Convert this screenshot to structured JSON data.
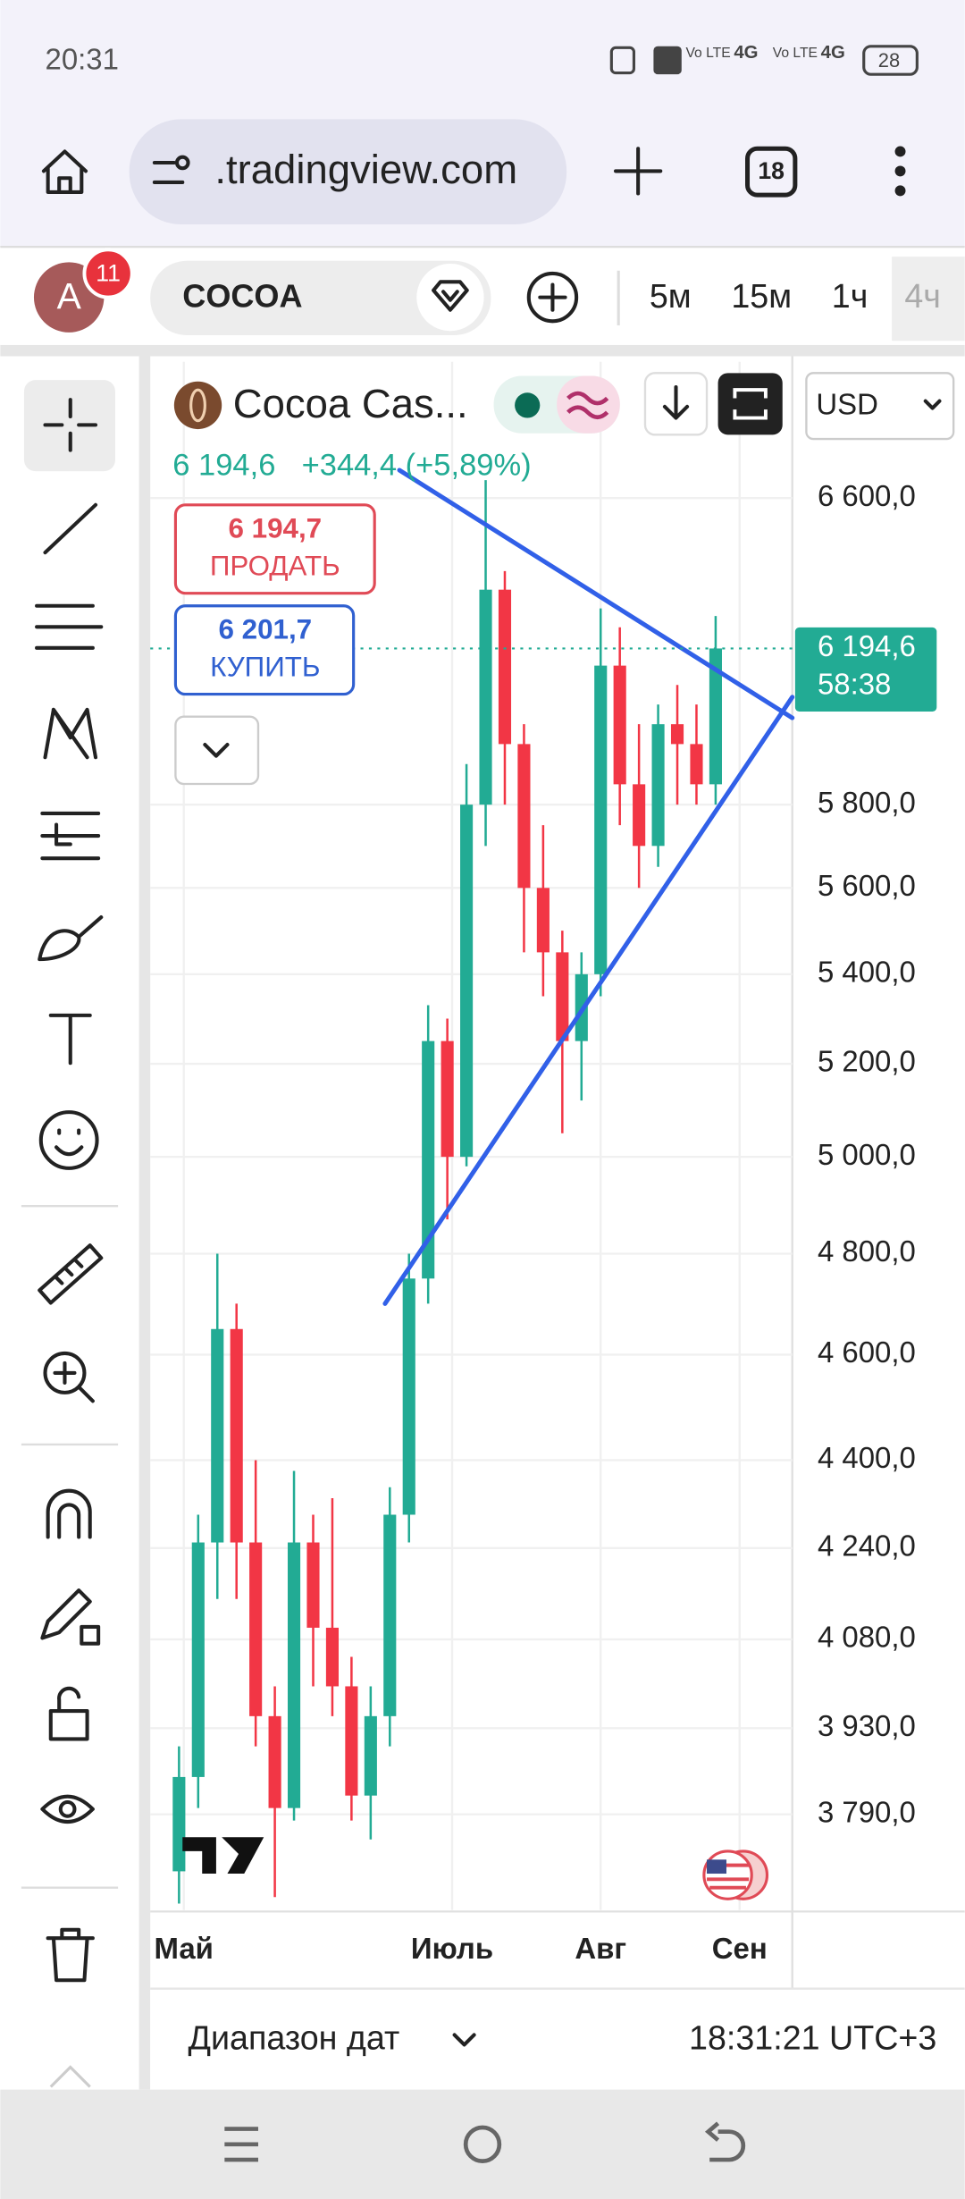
{
  "status_bar": {
    "time": "20:31",
    "network": [
      "Vo LTE",
      "4G",
      "Vo LTE",
      "4G"
    ],
    "battery": "28"
  },
  "browser": {
    "url": ".tradingview.com",
    "tabs": "18"
  },
  "toolbar": {
    "avatar": "A",
    "notifications": "11",
    "symbol": "COCOA",
    "intervals": [
      "5м",
      "15м",
      "1ч",
      "4ч"
    ]
  },
  "chart_data": {
    "type": "candlestick",
    "title": "Cocoa Cas...",
    "quote_price": "6 194,6",
    "quote_change": "+344,4 (+5,89%)",
    "sell": {
      "price": "6 194,7",
      "label": "ПРОДАТЬ"
    },
    "buy": {
      "price": "6 201,7",
      "label": "КУПИТЬ"
    },
    "currency": "USD",
    "last_price": {
      "value": 6194.6,
      "label": "6 194,6"
    },
    "countdown": "58:38",
    "log_scale": true,
    "grid": true,
    "up_color": "#22ab94",
    "down_color": "#f23645",
    "trendline_color": "#3160e8",
    "ylim": [
      3640,
      6990
    ],
    "yticks": [
      {
        "value": 6600,
        "label": "6 600,0"
      },
      {
        "value": 5800,
        "label": "5 800,0"
      },
      {
        "value": 5600,
        "label": "5 600,0"
      },
      {
        "value": 5400,
        "label": "5 400,0"
      },
      {
        "value": 5200,
        "label": "5 200,0"
      },
      {
        "value": 5000,
        "label": "5 000,0"
      },
      {
        "value": 4800,
        "label": "4 800,0"
      },
      {
        "value": 4600,
        "label": "4 600,0"
      },
      {
        "value": 4400,
        "label": "4 400,0"
      },
      {
        "value": 4240,
        "label": "4 240,0"
      },
      {
        "value": 4080,
        "label": "4 080,0"
      },
      {
        "value": 3930,
        "label": "3 930,0"
      },
      {
        "value": 3790,
        "label": "3 790,0"
      }
    ],
    "xlim": [
      0,
      134
    ],
    "xticks": [
      {
        "value": 7,
        "label": "Май"
      },
      {
        "value": 63,
        "label": "Июль"
      },
      {
        "value": 94,
        "label": "Авг"
      },
      {
        "value": 123,
        "label": "Сен"
      }
    ],
    "candles": {
      "x": [
        6,
        10,
        14,
        18,
        22,
        26,
        30,
        34,
        38,
        42,
        46,
        50,
        54,
        58,
        62,
        66,
        70,
        74,
        78,
        82,
        86,
        90,
        94,
        98,
        102,
        106,
        110,
        114,
        118
      ],
      "open": [
        3700,
        3850,
        4250,
        4650,
        4250,
        3950,
        3800,
        4250,
        4100,
        4000,
        3820,
        3950,
        4300,
        4750,
        5250,
        5000,
        5800,
        6350,
        5950,
        5600,
        5450,
        5250,
        5400,
        6150,
        5850,
        5700,
        6000,
        5950,
        5850
      ],
      "high": [
        3900,
        4300,
        4800,
        4700,
        4400,
        4000,
        4380,
        4300,
        4330,
        4050,
        4000,
        4350,
        4800,
        5330,
        5300,
        5900,
        6650,
        6400,
        6000,
        5750,
        5500,
        5450,
        6300,
        6250,
        6000,
        6050,
        6100,
        6050,
        6280
      ],
      "low": [
        3650,
        3800,
        4150,
        4150,
        3900,
        3660,
        3780,
        4000,
        3950,
        3780,
        3750,
        3900,
        4250,
        4700,
        4870,
        4980,
        5700,
        5800,
        5450,
        5350,
        5050,
        5120,
        5350,
        5750,
        5600,
        5650,
        5800,
        5800,
        5800
      ],
      "close": [
        3850,
        4250,
        4650,
        4250,
        3950,
        3800,
        4250,
        4100,
        4000,
        3820,
        3950,
        4300,
        4750,
        5250,
        5000,
        5800,
        6350,
        5950,
        5600,
        5450,
        5250,
        5400,
        6150,
        5850,
        5700,
        6000,
        5950,
        5850,
        6194.6
      ]
    },
    "trendlines": [
      {
        "x": [
          52,
          134
        ],
        "y": [
          6678,
          6016
        ]
      },
      {
        "x": [
          49,
          134
        ],
        "y": [
          4700,
          6069
        ]
      }
    ]
  },
  "footer": {
    "date_range": "Диапазон дат",
    "clock": "18:31:21 UTC+3"
  }
}
